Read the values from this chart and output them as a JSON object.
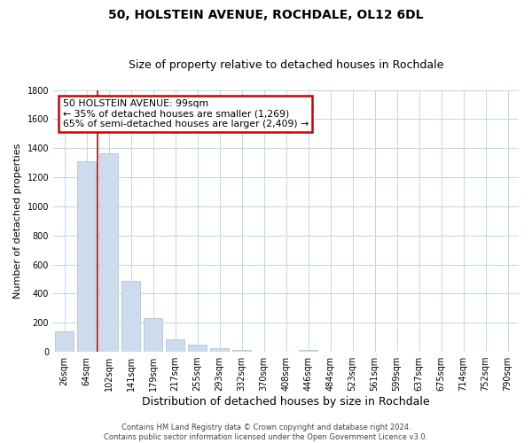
{
  "title": "50, HOLSTEIN AVENUE, ROCHDALE, OL12 6DL",
  "subtitle": "Size of property relative to detached houses in Rochdale",
  "xlabel": "Distribution of detached houses by size in Rochdale",
  "ylabel": "Number of detached properties",
  "bar_labels": [
    "26sqm",
    "64sqm",
    "102sqm",
    "141sqm",
    "179sqm",
    "217sqm",
    "255sqm",
    "293sqm",
    "332sqm",
    "370sqm",
    "408sqm",
    "446sqm",
    "484sqm",
    "523sqm",
    "561sqm",
    "599sqm",
    "637sqm",
    "675sqm",
    "714sqm",
    "752sqm",
    "790sqm"
  ],
  "bar_values": [
    140,
    1310,
    1365,
    490,
    230,
    85,
    50,
    25,
    10,
    0,
    0,
    15,
    0,
    0,
    0,
    0,
    0,
    0,
    0,
    0,
    0
  ],
  "bar_color": "#cddcec",
  "bar_edge_color": "#aabdd4",
  "vline_position": 1.5,
  "vline_color": "#cc0000",
  "annotation_title": "50 HOLSTEIN AVENUE: 99sqm",
  "annotation_line1": "← 35% of detached houses are smaller (1,269)",
  "annotation_line2": "65% of semi-detached houses are larger (2,409) →",
  "annotation_box_color": "#ffffff",
  "annotation_box_edge": "#cc0000",
  "ylim": [
    0,
    1800
  ],
  "yticks": [
    0,
    200,
    400,
    600,
    800,
    1000,
    1200,
    1400,
    1600,
    1800
  ],
  "footer_line1": "Contains HM Land Registry data © Crown copyright and database right 2024.",
  "footer_line2": "Contains public sector information licensed under the Open Government Licence v3.0.",
  "background_color": "#ffffff",
  "grid_color": "#c5d5e5",
  "title_fontsize": 10,
  "subtitle_fontsize": 9,
  "ylabel_fontsize": 8,
  "xlabel_fontsize": 9,
  "tick_fontsize": 7,
  "footer_fontsize": 6
}
